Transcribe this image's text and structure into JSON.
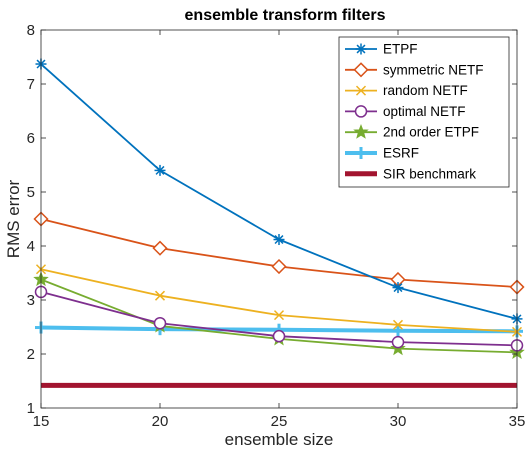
{
  "chart_data": {
    "type": "line",
    "title": "ensemble transform filters",
    "xlabel": "ensemble size",
    "ylabel": "RMS error",
    "x": [
      15,
      20,
      25,
      30,
      35
    ],
    "xlim": [
      15,
      35
    ],
    "ylim": [
      1,
      8
    ],
    "xticks": [
      15,
      20,
      25,
      30,
      35
    ],
    "yticks": [
      1,
      2,
      3,
      4,
      5,
      6,
      7,
      8
    ],
    "grid": false,
    "legend_position": "top-right",
    "series": [
      {
        "name": "ETPF",
        "color": "#0072BD",
        "marker": "asterisk",
        "values": [
          7.37,
          5.4,
          4.12,
          3.23,
          2.65
        ]
      },
      {
        "name": "symmetric NETF",
        "color": "#D95319",
        "marker": "diamond",
        "values": [
          4.5,
          3.96,
          3.62,
          3.38,
          3.24
        ]
      },
      {
        "name": "random NETF",
        "color": "#EDB120",
        "marker": "x",
        "values": [
          3.57,
          3.08,
          2.72,
          2.54,
          2.41
        ]
      },
      {
        "name": "optimal NETF",
        "color": "#7E2F8E",
        "marker": "circle",
        "values": [
          3.15,
          2.57,
          2.33,
          2.22,
          2.16
        ]
      },
      {
        "name": "2nd order ETPF",
        "color": "#77AC30",
        "marker": "pentagram",
        "values": [
          3.38,
          2.52,
          2.28,
          2.1,
          2.03
        ]
      },
      {
        "name": "ESRF",
        "color": "#4DBEEE",
        "marker": "plus",
        "thick": true,
        "values": [
          2.49,
          2.46,
          2.45,
          2.43,
          2.42
        ]
      },
      {
        "name": "SIR benchmark",
        "color": "#A2142F",
        "marker": "none",
        "thick": true,
        "values": [
          1.42,
          1.42,
          1.42,
          1.42,
          1.42
        ]
      }
    ]
  }
}
